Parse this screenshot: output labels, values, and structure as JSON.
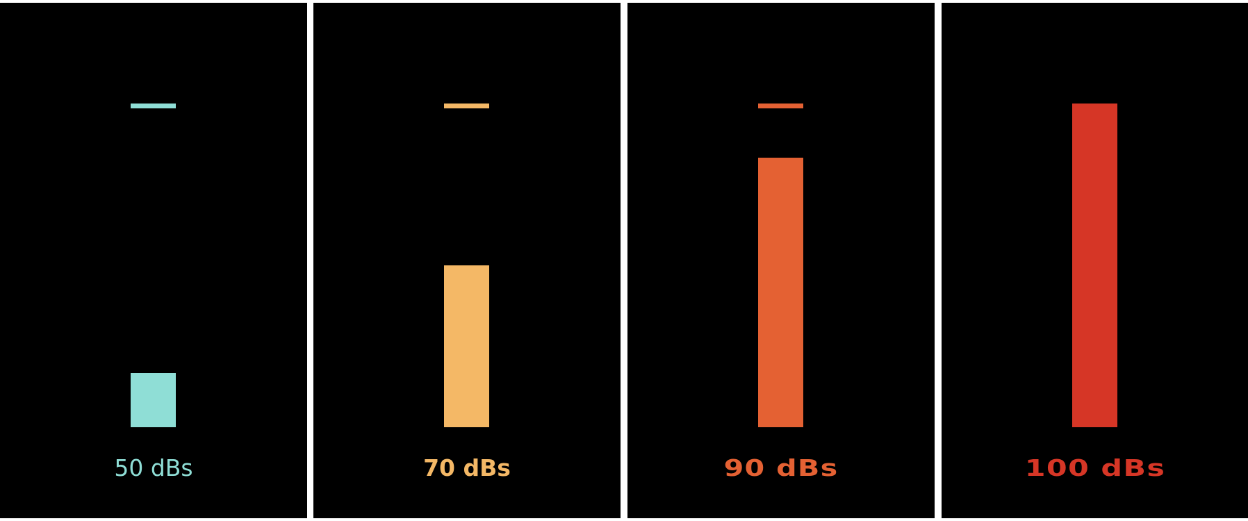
{
  "chart_data": {
    "type": "bar",
    "categories": [
      "50 dBs",
      "70 dBs",
      "90 dBs",
      "100 dBs"
    ],
    "values": [
      50,
      70,
      90,
      100
    ],
    "ylim": [
      40,
      100
    ],
    "max_marker": 100,
    "colors": [
      "#8FDED6",
      "#F4B866",
      "#E46133",
      "#D63626"
    ],
    "grid": false,
    "legend": "none"
  }
}
